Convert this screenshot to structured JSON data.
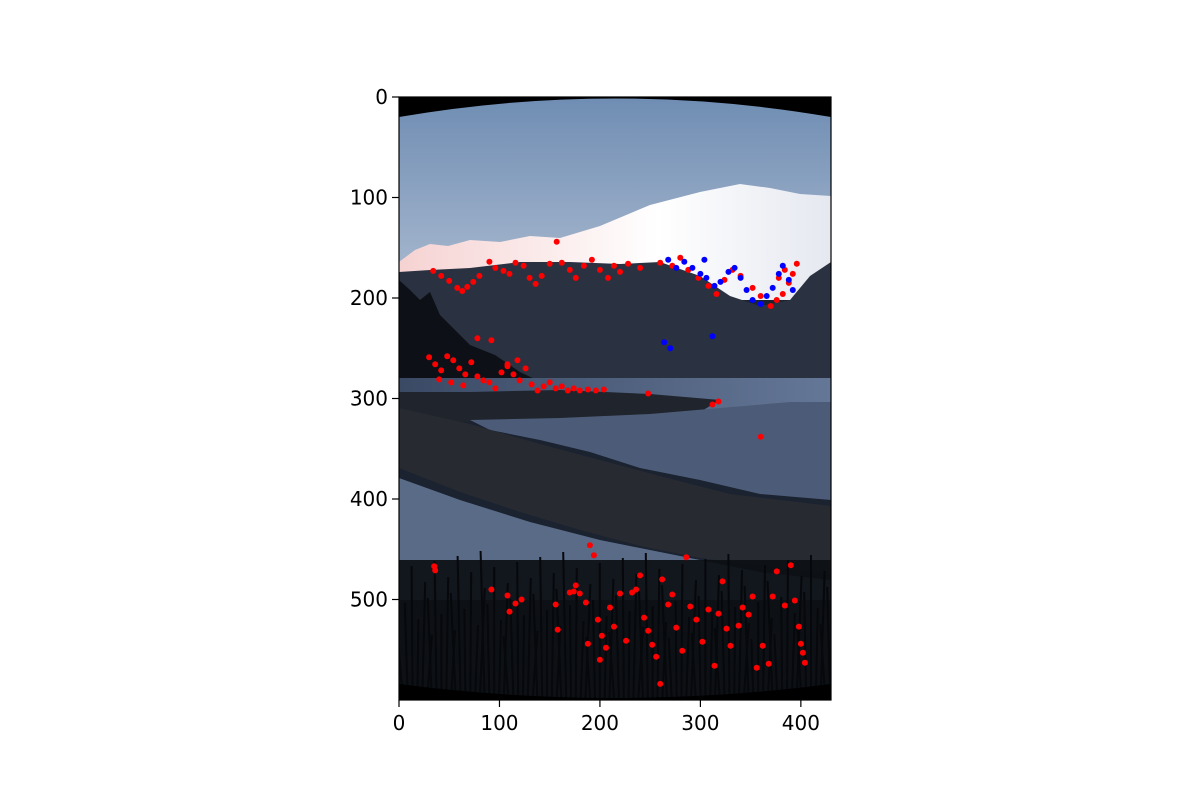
{
  "chart_data": {
    "type": "scatter",
    "title": "",
    "xlabel": "",
    "ylabel": "",
    "background": "photograph of snow-capped mountains above a lake shore at dusk, dark grass in the foreground, with black fisheye border corners",
    "xlim": [
      0,
      430
    ],
    "ylim": [
      600,
      0
    ],
    "y_axis_inverted": true,
    "grid": false,
    "legend": "none",
    "x_ticks": [
      "0",
      "100",
      "200",
      "300",
      "400"
    ],
    "y_ticks": [
      "0",
      "100",
      "200",
      "300",
      "400",
      "500"
    ],
    "series": [
      {
        "color": "#ff0000",
        "points": [
          [
            34,
            173
          ],
          [
            42,
            178
          ],
          [
            50,
            183
          ],
          [
            58,
            190
          ],
          [
            63,
            193
          ],
          [
            68,
            189
          ],
          [
            74,
            184
          ],
          [
            80,
            178
          ],
          [
            90,
            164
          ],
          [
            96,
            170
          ],
          [
            104,
            173
          ],
          [
            110,
            176
          ],
          [
            116,
            165
          ],
          [
            124,
            168
          ],
          [
            130,
            180
          ],
          [
            136,
            186
          ],
          [
            142,
            178
          ],
          [
            150,
            166
          ],
          [
            157,
            144
          ],
          [
            162,
            165
          ],
          [
            170,
            172
          ],
          [
            176,
            180
          ],
          [
            184,
            168
          ],
          [
            192,
            162
          ],
          [
            200,
            172
          ],
          [
            208,
            180
          ],
          [
            214,
            168
          ],
          [
            220,
            174
          ],
          [
            228,
            166
          ],
          [
            240,
            170
          ],
          [
            260,
            165
          ],
          [
            272,
            168
          ],
          [
            280,
            160
          ],
          [
            288,
            172
          ],
          [
            298,
            180
          ],
          [
            308,
            188
          ],
          [
            316,
            196
          ],
          [
            324,
            182
          ],
          [
            332,
            172
          ],
          [
            340,
            178
          ],
          [
            352,
            190
          ],
          [
            360,
            198
          ],
          [
            370,
            208
          ],
          [
            376,
            202
          ],
          [
            382,
            196
          ],
          [
            388,
            185
          ],
          [
            392,
            176
          ],
          [
            396,
            166
          ],
          [
            384,
            172
          ],
          [
            378,
            180
          ],
          [
            30,
            259
          ],
          [
            36,
            266
          ],
          [
            42,
            272
          ],
          [
            48,
            258
          ],
          [
            54,
            262
          ],
          [
            60,
            270
          ],
          [
            66,
            276
          ],
          [
            72,
            264
          ],
          [
            78,
            278
          ],
          [
            84,
            282
          ],
          [
            90,
            284
          ],
          [
            96,
            290
          ],
          [
            102,
            274
          ],
          [
            108,
            268
          ],
          [
            114,
            276
          ],
          [
            120,
            282
          ],
          [
            126,
            270
          ],
          [
            132,
            286
          ],
          [
            138,
            292
          ],
          [
            144,
            288
          ],
          [
            150,
            284
          ],
          [
            156,
            290
          ],
          [
            162,
            288
          ],
          [
            168,
            292
          ],
          [
            174,
            290
          ],
          [
            180,
            292
          ],
          [
            188,
            291
          ],
          [
            196,
            292
          ],
          [
            204,
            291
          ],
          [
            40,
            281
          ],
          [
            52,
            284
          ],
          [
            64,
            287
          ],
          [
            78,
            240
          ],
          [
            92,
            242
          ],
          [
            108,
            266
          ],
          [
            118,
            262
          ],
          [
            248,
            295
          ],
          [
            312,
            306
          ],
          [
            318,
            303
          ],
          [
            360,
            338
          ],
          [
            35,
            467
          ],
          [
            36,
            471
          ],
          [
            92,
            490
          ],
          [
            108,
            496
          ],
          [
            110,
            512
          ],
          [
            116,
            504
          ],
          [
            122,
            500
          ],
          [
            156,
            505
          ],
          [
            158,
            530
          ],
          [
            170,
            493
          ],
          [
            176,
            486
          ],
          [
            180,
            494
          ],
          [
            186,
            503
          ],
          [
            188,
            544
          ],
          [
            190,
            446
          ],
          [
            194,
            456
          ],
          [
            198,
            520
          ],
          [
            202,
            536
          ],
          [
            206,
            548
          ],
          [
            210,
            508
          ],
          [
            214,
            527
          ],
          [
            220,
            494
          ],
          [
            226,
            541
          ],
          [
            232,
            493
          ],
          [
            236,
            490
          ],
          [
            240,
            476
          ],
          [
            244,
            518
          ],
          [
            248,
            531
          ],
          [
            252,
            545
          ],
          [
            256,
            557
          ],
          [
            260,
            584
          ],
          [
            262,
            480
          ],
          [
            268,
            505
          ],
          [
            272,
            495
          ],
          [
            276,
            528
          ],
          [
            282,
            551
          ],
          [
            286,
            458
          ],
          [
            290,
            507
          ],
          [
            296,
            520
          ],
          [
            302,
            542
          ],
          [
            308,
            510
          ],
          [
            314,
            566
          ],
          [
            318,
            514
          ],
          [
            322,
            482
          ],
          [
            326,
            529
          ],
          [
            330,
            546
          ],
          [
            338,
            526
          ],
          [
            342,
            508
          ],
          [
            348,
            515
          ],
          [
            352,
            497
          ],
          [
            356,
            568
          ],
          [
            362,
            546
          ],
          [
            368,
            564
          ],
          [
            372,
            497
          ],
          [
            376,
            472
          ],
          [
            384,
            506
          ],
          [
            390,
            466
          ],
          [
            394,
            501
          ],
          [
            398,
            527
          ],
          [
            400,
            544
          ],
          [
            402,
            553
          ],
          [
            404,
            563
          ],
          [
            226,
            612
          ],
          [
            200,
            560
          ],
          [
            174,
            492
          ]
        ]
      },
      {
        "color": "#0000ff",
        "points": [
          [
            268,
            162
          ],
          [
            276,
            170
          ],
          [
            284,
            164
          ],
          [
            292,
            170
          ],
          [
            300,
            176
          ],
          [
            306,
            180
          ],
          [
            314,
            188
          ],
          [
            320,
            184
          ],
          [
            328,
            174
          ],
          [
            334,
            170
          ],
          [
            340,
            180
          ],
          [
            346,
            192
          ],
          [
            352,
            202
          ],
          [
            360,
            206
          ],
          [
            366,
            198
          ],
          [
            372,
            190
          ],
          [
            378,
            176
          ],
          [
            382,
            168
          ],
          [
            388,
            182
          ],
          [
            392,
            192
          ],
          [
            264,
            244
          ],
          [
            270,
            250
          ],
          [
            312,
            238
          ],
          [
            304,
            162
          ]
        ]
      }
    ]
  }
}
